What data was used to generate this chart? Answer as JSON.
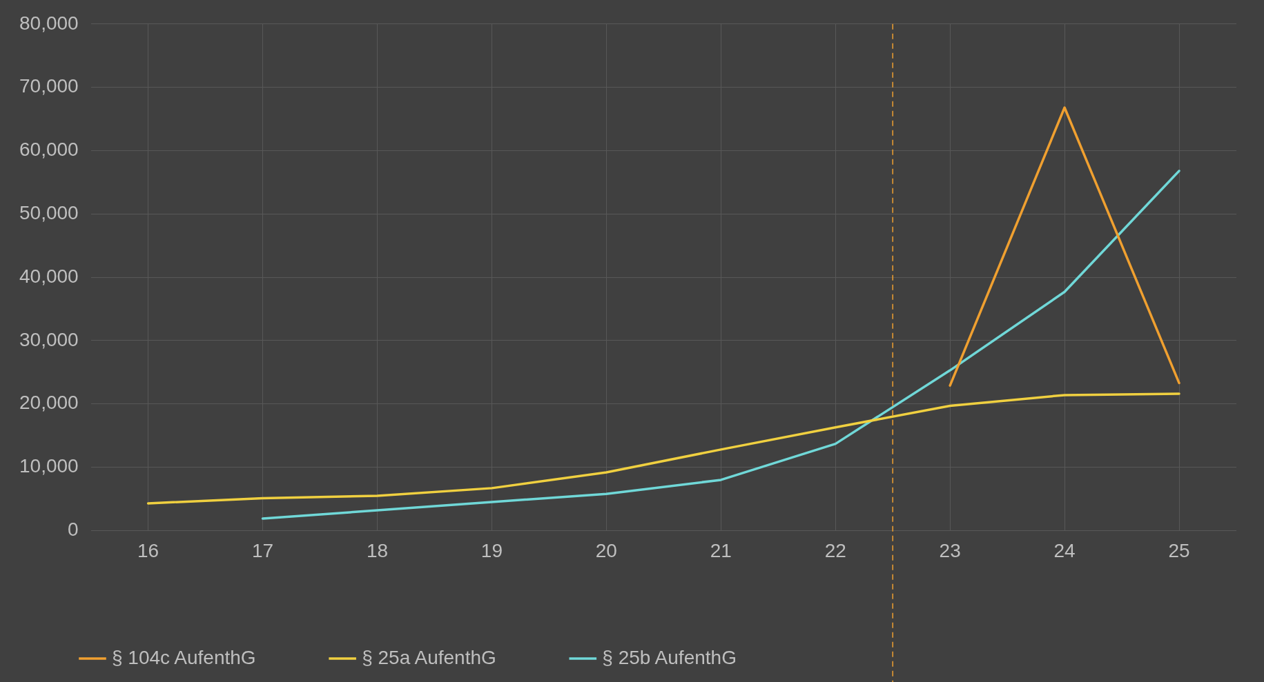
{
  "chart_data": {
    "type": "line",
    "x": [
      16,
      17,
      18,
      19,
      20,
      21,
      22,
      23,
      24,
      25
    ],
    "series": [
      {
        "name": "§ 104c AufenthG",
        "color": "#f0a030",
        "values": [
          null,
          null,
          null,
          null,
          null,
          null,
          null,
          22900,
          66800,
          23300
        ]
      },
      {
        "name": "§ 25a AufenthG",
        "color": "#f0d040",
        "values": [
          4300,
          5100,
          5500,
          6700,
          9200,
          12800,
          16300,
          19700,
          21400,
          21600
        ]
      },
      {
        "name": "§ 25b AufenthG",
        "color": "#70d8d8",
        "values": [
          null,
          1900,
          3200,
          4500,
          5800,
          8000,
          13700,
          25300,
          37700,
          56800
        ]
      }
    ],
    "xlim": [
      15.5,
      25.5
    ],
    "xticks": [
      16,
      17,
      18,
      19,
      20,
      21,
      22,
      23,
      24,
      25
    ],
    "ylim": [
      0,
      80000
    ],
    "yticks": [
      {
        "value": 0,
        "label": "0"
      },
      {
        "value": 10000,
        "label": "10,000"
      },
      {
        "value": 20000,
        "label": "20,000"
      },
      {
        "value": 30000,
        "label": "30,000"
      },
      {
        "value": 40000,
        "label": "40,000"
      },
      {
        "value": 50000,
        "label": "50,000"
      },
      {
        "value": 60000,
        "label": "60,000"
      },
      {
        "value": 70000,
        "label": "70,000"
      },
      {
        "value": 80000,
        "label": "80,000"
      }
    ],
    "ref_lines": [
      {
        "axis": "x",
        "value": 22.5,
        "color": "#f0a030",
        "line_style": "dashed"
      }
    ],
    "grid": true,
    "legend": "bottom left",
    "marker": "none",
    "line_style": "solid"
  }
}
